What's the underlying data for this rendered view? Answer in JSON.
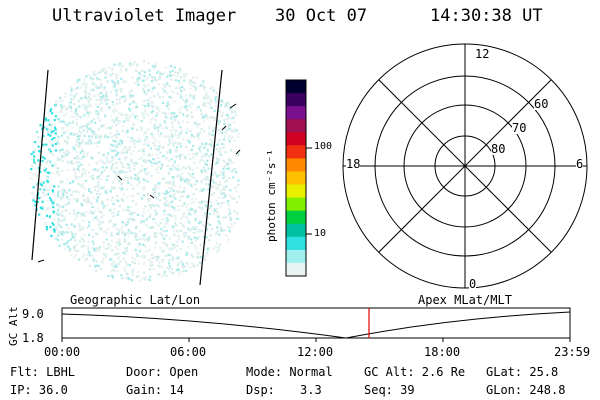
{
  "header": {
    "title": "Ultraviolet Imager",
    "date": "30 Oct 07",
    "time": "14:30:38 UT"
  },
  "colorbar": {
    "unit_label": "photon cm⁻²s⁻¹",
    "ticks": [
      "100",
      "10"
    ],
    "scale": "log",
    "colors": [
      "#000030",
      "#3a0060",
      "#7a1090",
      "#a01050",
      "#d00020",
      "#f03010",
      "#ff8800",
      "#ffc000",
      "#e8f000",
      "#80f000",
      "#00d040",
      "#00c0a0",
      "#30e0e0",
      "#a0f0f0",
      "#e8f4f4"
    ]
  },
  "polar_plot": {
    "top_label": "12",
    "left_label": "18",
    "right_label": "6",
    "bottom_label": "0",
    "ring_labels": [
      "60",
      "70",
      "80"
    ]
  },
  "timeline": {
    "left_title": "Geographic Lat/Lon",
    "right_title": "Apex MLat/MLT",
    "y_axis_label": "GC Alt",
    "y_ticks": [
      "9.0",
      "1.8"
    ],
    "x_ticks": [
      "00:00",
      "06:00",
      "12:00",
      "18:00",
      "23:59"
    ],
    "marker_color": "#e00000"
  },
  "status": {
    "flt": "Flt: LBHL",
    "door": "Door: Open",
    "mode": "Mode: Normal",
    "gcalt": "GC Alt: 2.6 Re",
    "glat": "GLat:  25.8",
    "ip": "IP: 36.0",
    "gain": "Gain: 14",
    "dsp_label": "Dsp:",
    "dsp_value": "3.3",
    "seq": "Seq: 39",
    "glon": "GLon: 248.8"
  }
}
